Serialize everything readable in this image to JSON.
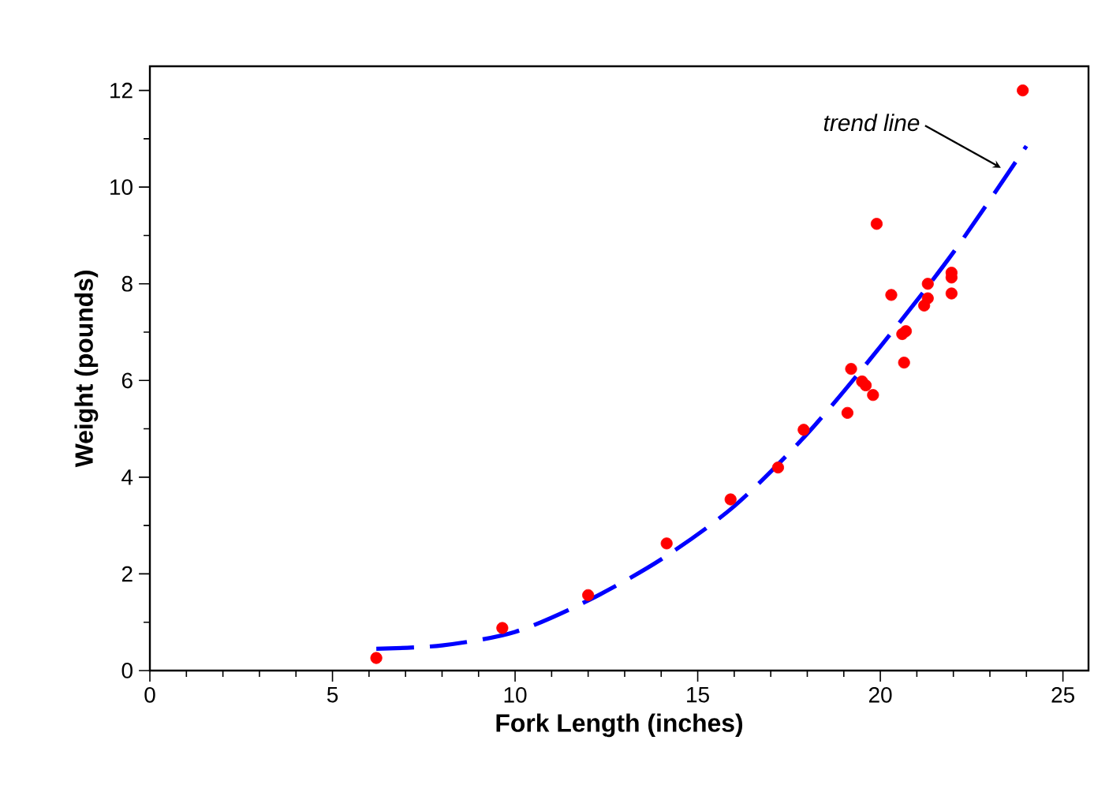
{
  "chart_data": {
    "type": "scatter",
    "xlabel": "Fork Length (inches)",
    "ylabel": "Weight (pounds)",
    "xlim": [
      0,
      25.7
    ],
    "ylim": [
      0,
      12.5
    ],
    "xticks": [
      0,
      5,
      10,
      15,
      20,
      25
    ],
    "yticks": [
      0,
      2,
      4,
      6,
      8,
      10,
      12
    ],
    "grid": false,
    "annotations": [
      {
        "text": "*trend line*",
        "x": 23.3,
        "y": 10.4
      }
    ],
    "series": [
      {
        "color": "#ff0000",
        "marker": "circle",
        "x": [
          6.2,
          9.65,
          12.0,
          14.15,
          15.9,
          17.2,
          17.9,
          19.1,
          19.2,
          19.5,
          19.6,
          19.8,
          19.9,
          20.3,
          20.6,
          20.7,
          20.65,
          21.2,
          21.3,
          21.3,
          21.95,
          21.95,
          21.95,
          23.9
        ],
        "values": [
          0.26,
          0.88,
          1.56,
          2.63,
          3.54,
          4.2,
          4.98,
          5.33,
          6.24,
          5.98,
          5.9,
          5.7,
          9.24,
          7.77,
          6.96,
          7.02,
          6.37,
          7.55,
          7.7,
          8.0,
          8.23,
          8.13,
          7.8,
          12.0
        ]
      },
      {
        "type": "line",
        "color": "#0000ff",
        "marker": "none",
        "line_style": "dashed",
        "x": [
          6.2,
          8,
          10,
          12,
          14,
          16,
          18,
          20,
          22,
          24
        ],
        "values": [
          0.45,
          0.52,
          0.8,
          1.45,
          2.3,
          3.4,
          4.9,
          6.7,
          8.65,
          10.85
        ]
      }
    ]
  }
}
